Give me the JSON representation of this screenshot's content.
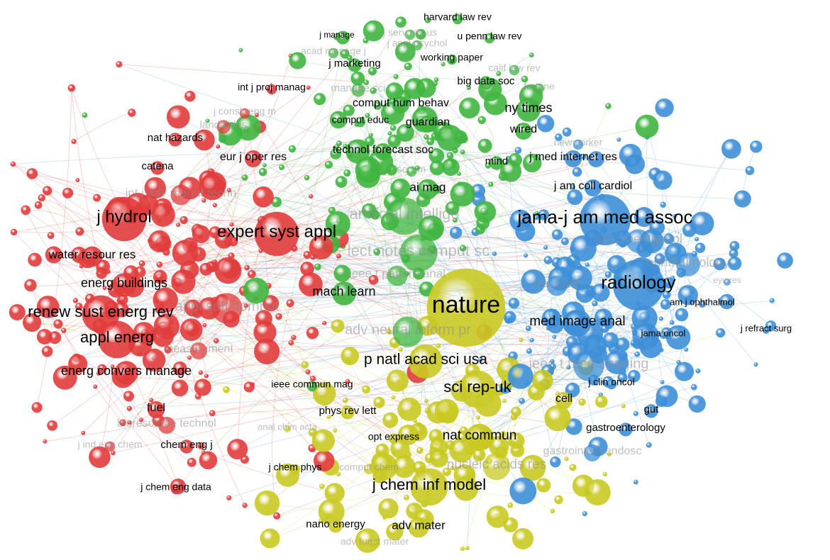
{
  "cluster_colors": [
    "#e23b3b",
    "#3fb53f",
    "#3d8fd8",
    "#c9c922"
  ],
  "nodes": [
    {
      "label": "harvard law rev",
      "cluster": 1
    },
    {
      "label": "j manage",
      "cluster": 1
    },
    {
      "label": "j serv res-us",
      "cluster": 1
    },
    {
      "label": "u penn law rev",
      "cluster": 1
    },
    {
      "label": "j appl psychol",
      "cluster": 1
    },
    {
      "label": "acad manage j",
      "cluster": 1
    },
    {
      "label": "working paper",
      "cluster": 1
    },
    {
      "label": "j marketing",
      "cluster": 1
    },
    {
      "label": "calif law rev",
      "cluster": 1
    },
    {
      "label": "manage sci",
      "cluster": 1
    },
    {
      "label": "big data soc",
      "cluster": 1
    },
    {
      "label": "int j proj manag",
      "cluster": 0
    },
    {
      "label": "fortune",
      "cluster": 1
    },
    {
      "label": "comput hum behav",
      "cluster": 1
    },
    {
      "label": "ny times",
      "cluster": 1
    },
    {
      "label": "comput educ",
      "cluster": 1
    },
    {
      "label": "guardian",
      "cluster": 1
    },
    {
      "label": "wired",
      "cluster": 1
    },
    {
      "label": "technol forecast soc",
      "cluster": 1
    },
    {
      "label": "mind",
      "cluster": 1
    },
    {
      "label": "sci am",
      "cluster": 1
    },
    {
      "label": "ai mag",
      "cluster": 1
    },
    {
      "label": "artificial intellige",
      "cluster": 1
    },
    {
      "label": "lect notes comput sc",
      "cluster": 1
    },
    {
      "label": "ieee t pattern anal",
      "cluster": 1
    },
    {
      "label": "mach learn",
      "cluster": 1
    },
    {
      "label": "adv neural inform pr",
      "cluster": 1
    },
    {
      "label": "ieee commun mag",
      "cluster": 1
    },
    {
      "label": "j constr eng m",
      "cluster": 0
    },
    {
      "label": "landslides",
      "cluster": 0
    },
    {
      "label": "nat hazards",
      "cluster": 0
    },
    {
      "label": "eur j oper res",
      "cluster": 0
    },
    {
      "label": "catena",
      "cluster": 0
    },
    {
      "label": "int j adv manuf techn",
      "cluster": 0
    },
    {
      "label": "j hydrol",
      "cluster": 0
    },
    {
      "label": "expert syst appl",
      "cluster": 0
    },
    {
      "label": "water resour res",
      "cluster": 0
    },
    {
      "label": "energ buildings",
      "cluster": 0
    },
    {
      "label": "appl soft comput",
      "cluster": 0
    },
    {
      "label": "renew sust energ rev",
      "cluster": 0
    },
    {
      "label": "appl energ",
      "cluster": 0
    },
    {
      "label": "measurement",
      "cluster": 0
    },
    {
      "label": "energ convers manage",
      "cluster": 0
    },
    {
      "label": "fuel",
      "cluster": 0
    },
    {
      "label": "bioresource technol",
      "cluster": 0
    },
    {
      "label": "j ind eng chem",
      "cluster": 0
    },
    {
      "label": "chem eng j",
      "cluster": 0
    },
    {
      "label": "j chem eng data",
      "cluster": 0
    },
    {
      "label": "new yorker",
      "cluster": 2
    },
    {
      "label": "j med internet res",
      "cluster": 2
    },
    {
      "label": "j am coll cardiol",
      "cluster": 2
    },
    {
      "label": "jama-j am med assoc",
      "cluster": 2
    },
    {
      "label": "am j roentgenol",
      "cluster": 2
    },
    {
      "label": "ophthalmology",
      "cluster": 2
    },
    {
      "label": "nat med",
      "cluster": 2
    },
    {
      "label": "radiology",
      "cluster": 2
    },
    {
      "label": "eye res",
      "cluster": 2
    },
    {
      "label": "am j ophthalmol",
      "cluster": 2
    },
    {
      "label": "med image anal",
      "cluster": 2
    },
    {
      "label": "jama oncol",
      "cluster": 2
    },
    {
      "label": "j refract surg",
      "cluster": 2
    },
    {
      "label": "ieee t med imaging",
      "cluster": 2
    },
    {
      "label": "j clin oncol",
      "cluster": 2
    },
    {
      "label": "gut",
      "cluster": 2
    },
    {
      "label": "gastroenterology",
      "cluster": 2
    },
    {
      "label": "gastrointest endosc",
      "cluster": 2
    },
    {
      "label": "nature",
      "cluster": 3
    },
    {
      "label": "p natl acad sci usa",
      "cluster": 3
    },
    {
      "label": "sci rep-uk",
      "cluster": 3
    },
    {
      "label": "cell",
      "cluster": 3
    },
    {
      "label": "phys rev lett",
      "cluster": 3
    },
    {
      "label": "opt express",
      "cluster": 3
    },
    {
      "label": "nat commun",
      "cluster": 3
    },
    {
      "label": "anal chim acta",
      "cluster": 3
    },
    {
      "label": "j chem phys",
      "cluster": 3
    },
    {
      "label": "comput chem",
      "cluster": 3
    },
    {
      "label": "nucleic acids res",
      "cluster": 3
    },
    {
      "label": "j chem inf model",
      "cluster": 3
    },
    {
      "label": "nano energy",
      "cluster": 3
    },
    {
      "label": "adv mater",
      "cluster": 3
    },
    {
      "label": "adv funct mater",
      "cluster": 3
    }
  ]
}
